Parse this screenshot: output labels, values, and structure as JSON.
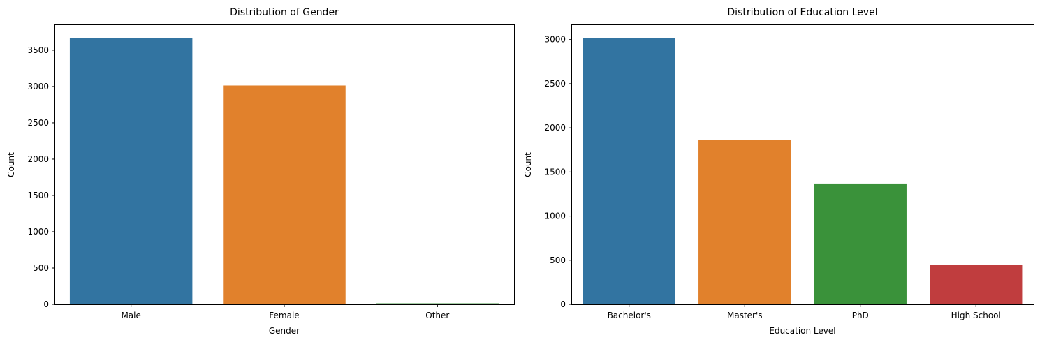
{
  "chart_data": [
    {
      "type": "bar",
      "title": "Distribution of Gender",
      "xlabel": "Gender",
      "ylabel": "Count",
      "categories": [
        "Male",
        "Female",
        "Other"
      ],
      "values": [
        3671,
        3014,
        14
      ],
      "colors": [
        "#3274a1",
        "#e1812c",
        "#3a923a"
      ],
      "ylim": [
        0,
        3855
      ],
      "yticks": [
        0,
        500,
        1000,
        1500,
        2000,
        2500,
        3000,
        3500
      ],
      "grid": false,
      "legend": "none"
    },
    {
      "type": "bar",
      "title": "Distribution of Education Level",
      "xlabel": "Education Level",
      "ylabel": "Count",
      "categories": [
        "Bachelor's",
        "Master's",
        "PhD",
        "High School"
      ],
      "values": [
        3021,
        1861,
        1369,
        448
      ],
      "colors": [
        "#3274a1",
        "#e1812c",
        "#3a923a",
        "#c03d3e"
      ],
      "ylim": [
        0,
        3172
      ],
      "yticks": [
        0,
        500,
        1000,
        1500,
        2000,
        2500,
        3000
      ],
      "grid": false,
      "legend": "none"
    }
  ]
}
